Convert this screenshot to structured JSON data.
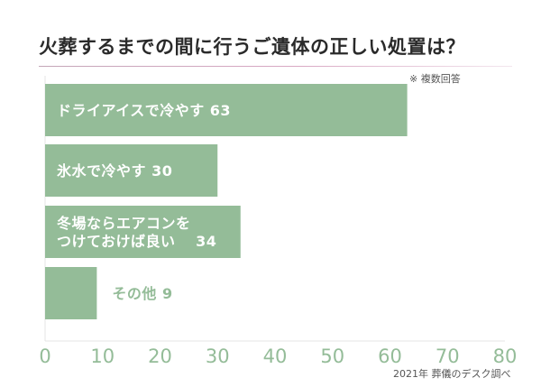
{
  "title": "火葬するまでの間に行うご遺体の正しい処置は？",
  "note": "※ 複数回答",
  "source": "2021年 葬儀のデスク調べ",
  "colors": {
    "bar": "#94bc98",
    "axis_text": "#94bc98",
    "accent_rule": "#d9a9c4"
  },
  "chart_data": {
    "type": "bar",
    "orientation": "horizontal",
    "title": "火葬するまでの間に行うご遺体の正しい処置は？",
    "categories": [
      "ドライアイスで冷やす",
      "氷水で冷やす",
      "冬場ならエアコンをつけておけば良い",
      "その他"
    ],
    "label_lines": [
      [
        "ドライアイスで冷やす 63"
      ],
      [
        "氷水で冷やす 30"
      ],
      [
        "冬場ならエアコンを",
        "つけておけば良い　 34"
      ],
      [
        "その他 9"
      ]
    ],
    "values": [
      63,
      30,
      34,
      9
    ],
    "xlim": [
      0,
      80
    ],
    "xticks": [
      "0",
      "10",
      "20",
      "30",
      "40",
      "50",
      "60",
      "70",
      "80"
    ],
    "grid": false,
    "legend": "none"
  }
}
